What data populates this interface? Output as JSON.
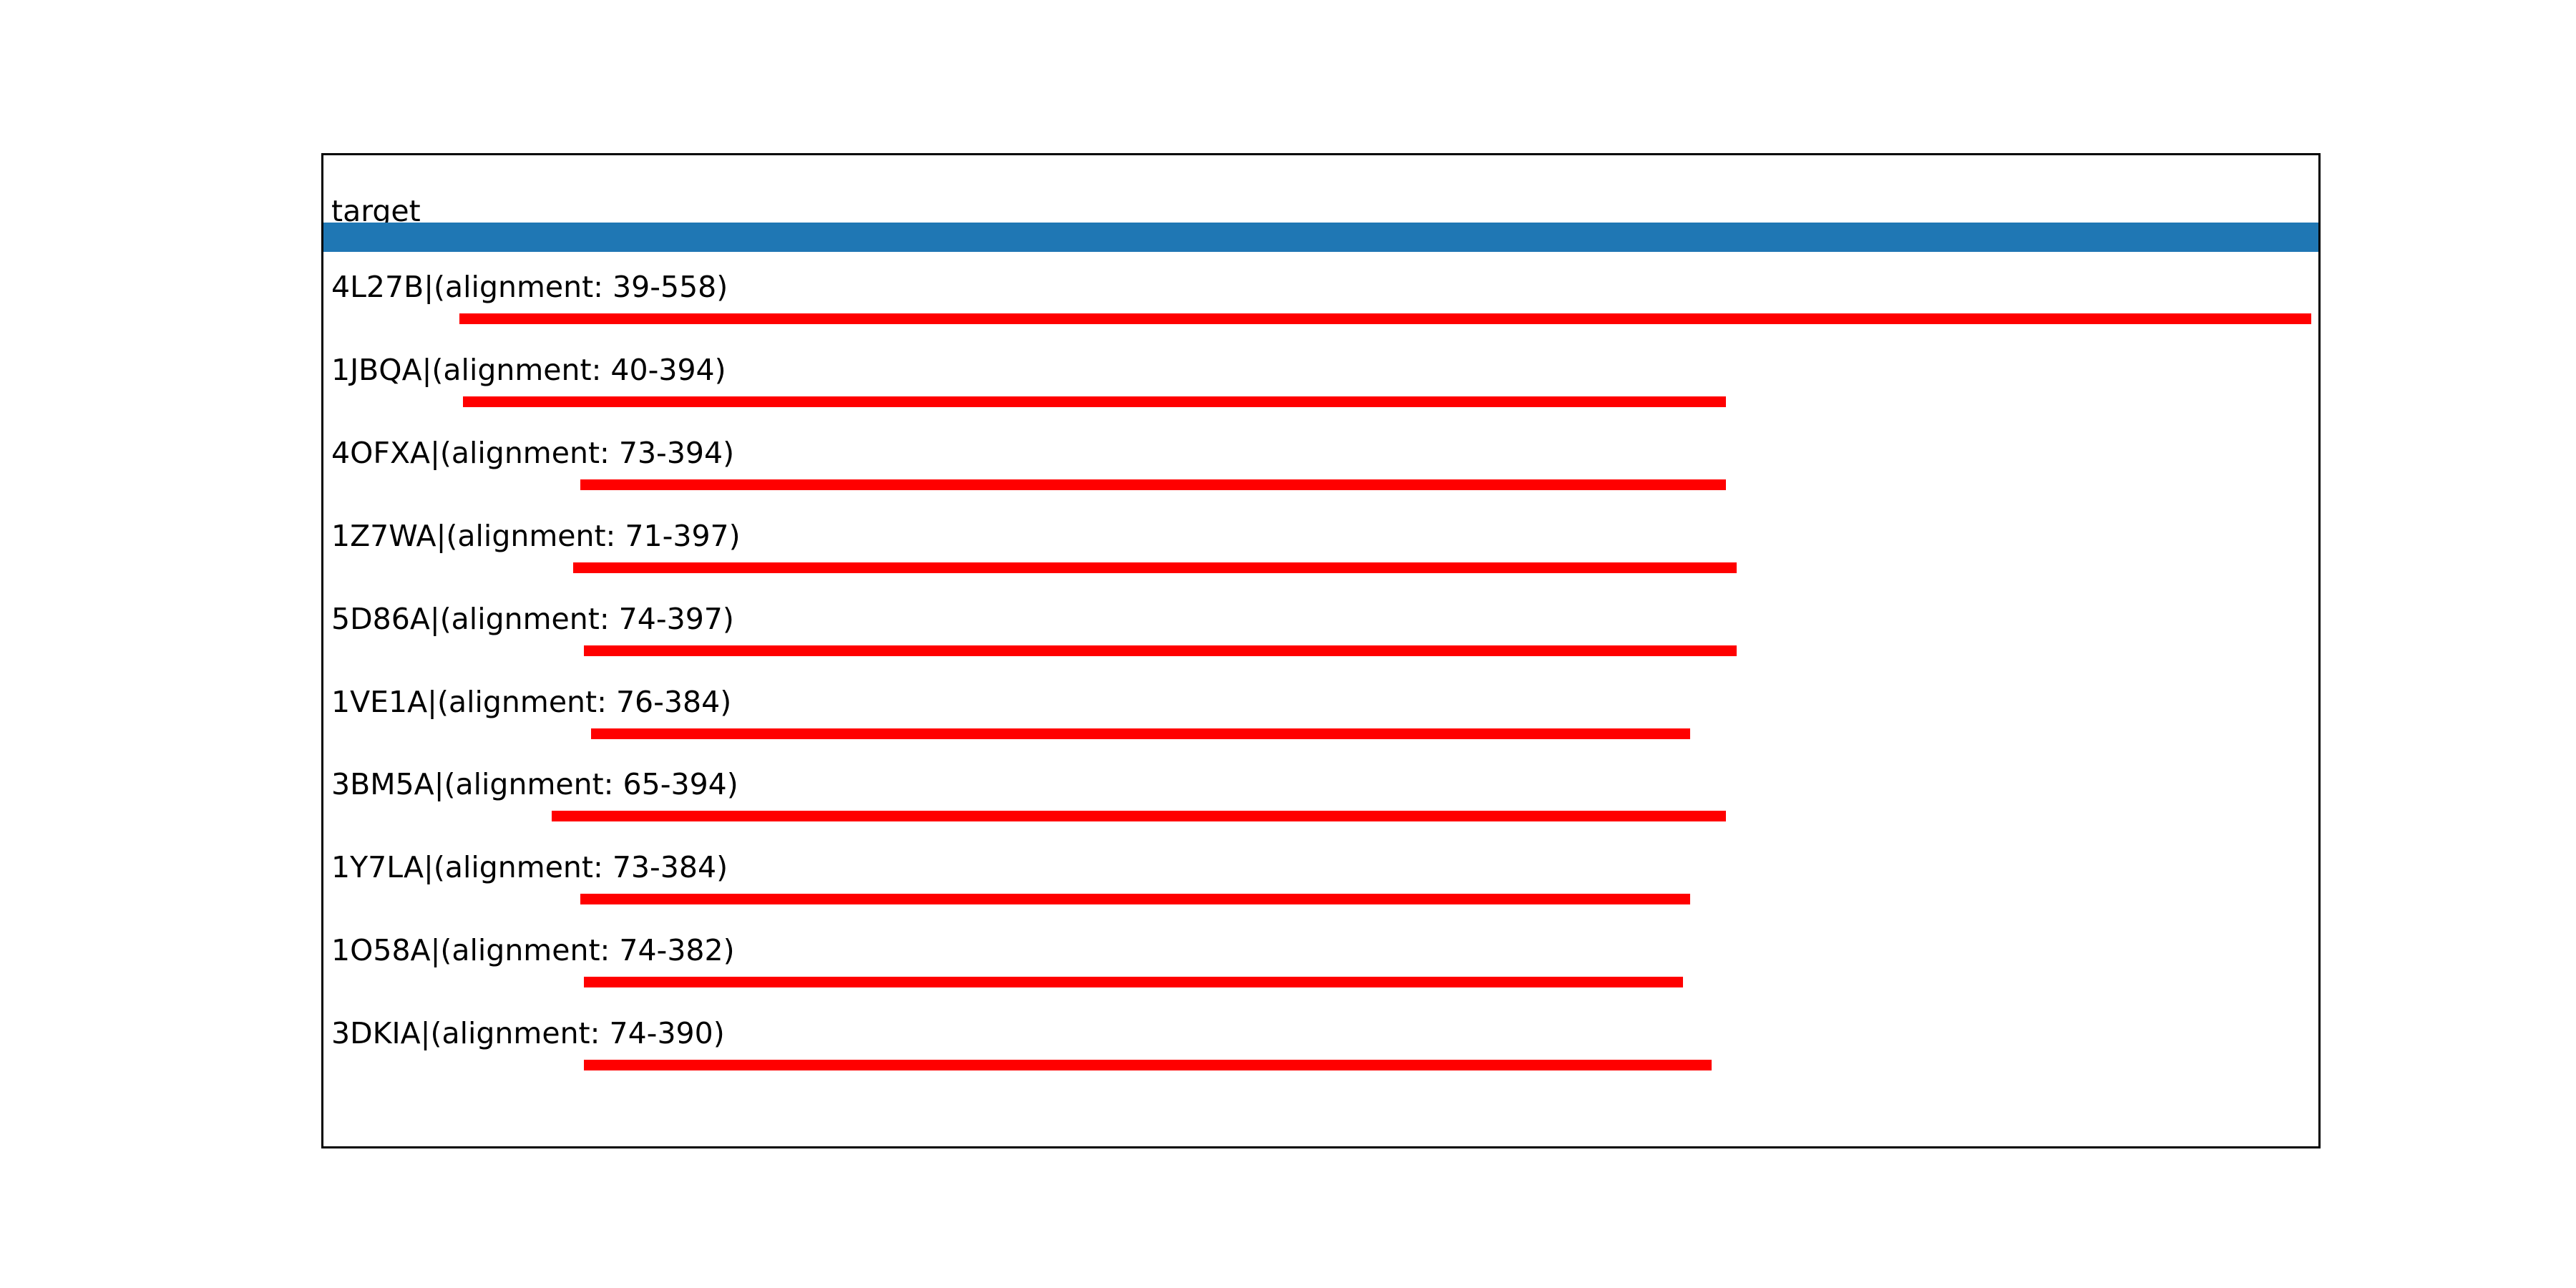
{
  "figure": {
    "background_color": "#ffffff",
    "frame_color": "#000000"
  },
  "chart_data": {
    "type": "alignment_tracks",
    "title": "",
    "xlabel": "",
    "ylabel": "",
    "x_domain": [
      1,
      560
    ],
    "grid": false,
    "legend": false,
    "target": {
      "label": "target",
      "start": 1,
      "end": 560,
      "color": "#1f77b4"
    },
    "hit_color": "#ff0000",
    "hits": [
      {
        "label": "4L27B|(alignment: 39-558)",
        "id": "4L27B",
        "start": 39,
        "end": 558
      },
      {
        "label": "1JBQA|(alignment: 40-394)",
        "id": "1JBQA",
        "start": 40,
        "end": 394
      },
      {
        "label": "4OFXA|(alignment: 73-394)",
        "id": "4OFXA",
        "start": 73,
        "end": 394
      },
      {
        "label": "1Z7WA|(alignment: 71-397)",
        "id": "1Z7WA",
        "start": 71,
        "end": 397
      },
      {
        "label": "5D86A|(alignment: 74-397)",
        "id": "5D86A",
        "start": 74,
        "end": 397
      },
      {
        "label": "1VE1A|(alignment: 76-384)",
        "id": "1VE1A",
        "start": 76,
        "end": 384
      },
      {
        "label": "3BM5A|(alignment: 65-394)",
        "id": "3BM5A",
        "start": 65,
        "end": 394
      },
      {
        "label": "1Y7LA|(alignment: 73-384)",
        "id": "1Y7LA",
        "start": 73,
        "end": 384
      },
      {
        "label": "1O58A|(alignment: 74-382)",
        "id": "1O58A",
        "start": 74,
        "end": 382
      },
      {
        "label": "3DKIA|(alignment: 74-390)",
        "id": "3DKIA",
        "start": 74,
        "end": 390
      }
    ]
  }
}
